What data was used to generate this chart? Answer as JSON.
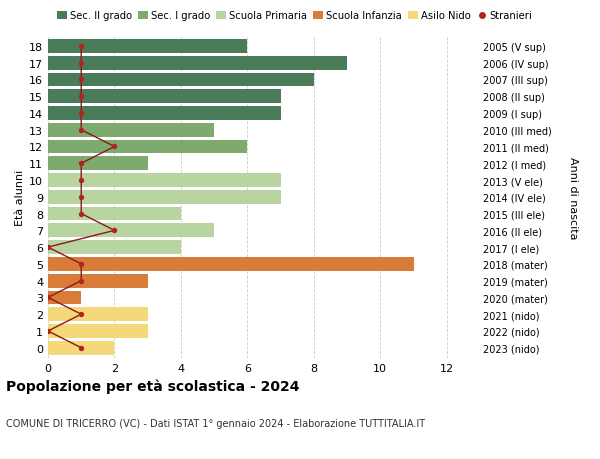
{
  "ages": [
    18,
    17,
    16,
    15,
    14,
    13,
    12,
    11,
    10,
    9,
    8,
    7,
    6,
    5,
    4,
    3,
    2,
    1,
    0
  ],
  "years": [
    "2005 (V sup)",
    "2006 (IV sup)",
    "2007 (III sup)",
    "2008 (II sup)",
    "2009 (I sup)",
    "2010 (III med)",
    "2011 (II med)",
    "2012 (I med)",
    "2013 (V ele)",
    "2014 (IV ele)",
    "2015 (III ele)",
    "2016 (II ele)",
    "2017 (I ele)",
    "2018 (mater)",
    "2019 (mater)",
    "2020 (mater)",
    "2021 (nido)",
    "2022 (nido)",
    "2023 (nido)"
  ],
  "bar_values": [
    6,
    9,
    8,
    7,
    7,
    5,
    6,
    3,
    7,
    7,
    4,
    5,
    4,
    11,
    3,
    1,
    3,
    3,
    2
  ],
  "bar_colors": [
    "#4a7c59",
    "#4a7c59",
    "#4a7c59",
    "#4a7c59",
    "#4a7c59",
    "#7faa6e",
    "#7faa6e",
    "#7faa6e",
    "#b8d4a0",
    "#b8d4a0",
    "#b8d4a0",
    "#b8d4a0",
    "#b8d4a0",
    "#d97c3a",
    "#d97c3a",
    "#d97c3a",
    "#f5d87a",
    "#f5d87a",
    "#f5d87a"
  ],
  "stranieri_x": [
    1,
    1,
    1,
    1,
    1,
    1,
    2,
    1,
    1,
    1,
    1,
    2,
    0,
    1,
    1,
    0,
    1,
    0,
    1
  ],
  "legend_labels": [
    "Sec. II grado",
    "Sec. I grado",
    "Scuola Primaria",
    "Scuola Infanzia",
    "Asilo Nido",
    "Stranieri"
  ],
  "legend_colors": [
    "#4a7c59",
    "#7faa6e",
    "#b8d4a0",
    "#d97c3a",
    "#f5d87a",
    "#b22222"
  ],
  "title": "Popolazione per età scolastica - 2024",
  "subtitle": "COMUNE DI TRICERRO (VC) - Dati ISTAT 1° gennaio 2024 - Elaborazione TUTTITALIA.IT",
  "xlabel_right": "Anni di nascita",
  "ylabel_left": "Età alunni",
  "xlim": [
    0,
    13
  ],
  "xticks": [
    0,
    2,
    4,
    6,
    8,
    10,
    12
  ],
  "background_color": "#ffffff",
  "grid_color": "#cccccc"
}
